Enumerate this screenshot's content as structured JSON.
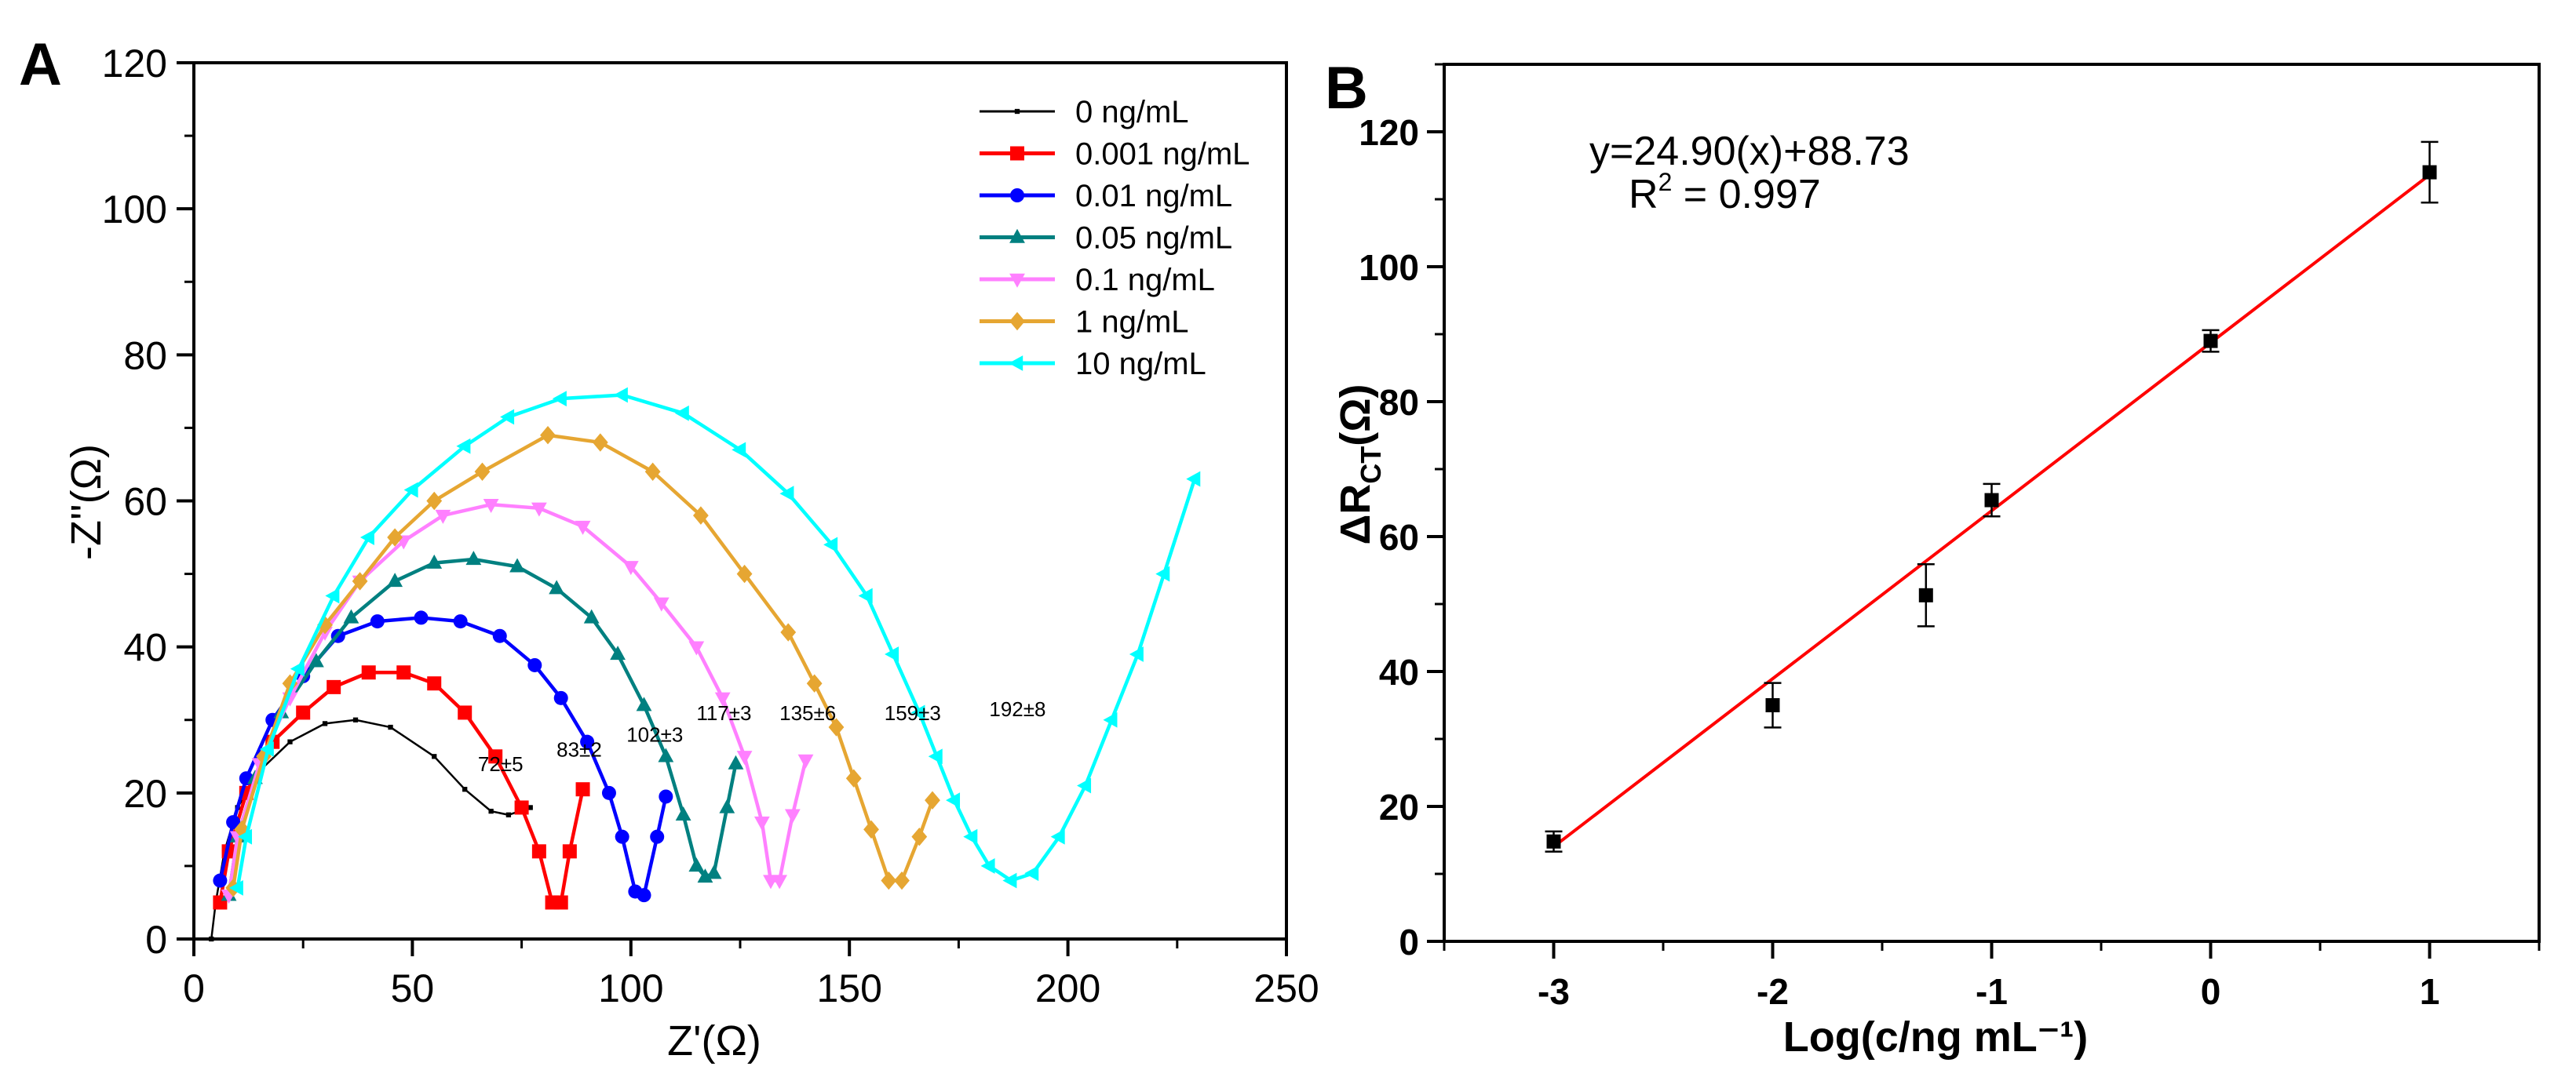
{
  "chart_data": [
    {
      "type": "line",
      "panel_label": "A",
      "title": "",
      "xlabel": "Z'(Ω)",
      "ylabel": "-Z''(Ω)",
      "xlim": [
        0,
        250
      ],
      "ylim": [
        0,
        120
      ],
      "xticks": [
        "0",
        "50",
        "100",
        "150",
        "200",
        "250"
      ],
      "yticks": [
        "0",
        "20",
        "40",
        "60",
        "80",
        "100",
        "120"
      ],
      "grid": false,
      "legend_position": "top-right",
      "series": [
        {
          "name": "0 ng/mL",
          "color": "#000000",
          "marker": "square-small",
          "x": [
            4,
            5,
            7,
            10,
            15,
            22,
            30,
            37,
            45,
            55,
            62,
            68,
            72,
            77
          ],
          "y": [
            0,
            5,
            12,
            18,
            23,
            27,
            29.5,
            30,
            29,
            25,
            20.5,
            17.5,
            17,
            18
          ]
        },
        {
          "name": "0.001 ng/mL",
          "color": "#ff0000",
          "marker": "square",
          "x": [
            6,
            8,
            12,
            18,
            25,
            32,
            40,
            48,
            55,
            62,
            69,
            75,
            79,
            82,
            84,
            86,
            89
          ],
          "y": [
            5,
            12,
            20,
            27,
            31,
            34.5,
            36.5,
            36.5,
            35,
            31,
            25,
            18,
            12,
            5,
            5,
            12,
            20.5
          ]
        },
        {
          "name": "0.01 ng/mL",
          "color": "#0000ff",
          "marker": "circle",
          "x": [
            6,
            9,
            12,
            18,
            25,
            33,
            42,
            52,
            61,
            70,
            78,
            84,
            90,
            95,
            98,
            101,
            103,
            106,
            108
          ],
          "y": [
            8,
            16,
            22,
            30,
            36,
            41.5,
            43.5,
            44,
            43.5,
            41.5,
            37.5,
            33,
            27,
            20,
            14,
            6.5,
            6,
            14,
            19.5
          ]
        },
        {
          "name": "0.05 ng/mL",
          "color": "#008080",
          "marker": "triangle-up",
          "x": [
            8,
            10,
            14,
            20,
            28,
            36,
            46,
            55,
            64,
            74,
            83,
            91,
            97,
            103,
            108,
            112,
            115,
            117,
            119,
            122,
            124
          ],
          "y": [
            6,
            14,
            22,
            31,
            38,
            44,
            49,
            51.5,
            52,
            51,
            48,
            44,
            39,
            32,
            25,
            17,
            10,
            8.5,
            9,
            18,
            24
          ]
        },
        {
          "name": "0.1 ng/mL",
          "color": "#ff80ff",
          "marker": "triangle-down",
          "x": [
            8,
            10,
            15,
            22,
            30,
            38,
            48,
            57,
            68,
            79,
            89,
            100,
            107,
            115,
            121,
            126,
            130,
            132,
            134,
            137,
            140
          ],
          "y": [
            6,
            14,
            24,
            33,
            42,
            49,
            54.5,
            58,
            59.5,
            59,
            56.5,
            51,
            46,
            40,
            33,
            25,
            16,
            8,
            8,
            17,
            24.5
          ]
        },
        {
          "name": "1 ng/mL",
          "color": "#e6a632",
          "marker": "diamond",
          "x": [
            9,
            11,
            16,
            22,
            30,
            38,
            46,
            55,
            66,
            81,
            93,
            105,
            116,
            126,
            136,
            142,
            147,
            151,
            155,
            159,
            162,
            166,
            169
          ],
          "y": [
            7,
            15,
            25,
            35,
            43,
            49,
            55,
            60,
            64,
            69,
            68,
            64,
            58,
            50,
            42,
            35,
            29,
            22,
            15,
            8,
            8,
            14,
            19
          ]
        },
        {
          "name": "10 ng/mL",
          "color": "#00ffff",
          "marker": "triangle-left",
          "x": [
            10,
            12,
            17,
            24,
            32,
            40,
            50,
            62,
            72,
            84,
            98,
            112,
            125,
            136,
            146,
            154,
            160,
            166,
            170,
            174,
            178,
            182,
            187,
            192,
            198,
            204,
            210,
            216,
            222,
            229
          ],
          "y": [
            7,
            14,
            26,
            37,
            47,
            55,
            61.5,
            67.5,
            71.5,
            74,
            74.5,
            72,
            67,
            61,
            54,
            47,
            39,
            31,
            25,
            19,
            14,
            10,
            8,
            9,
            14,
            21,
            30,
            39,
            50,
            63
          ]
        }
      ],
      "annotations": [
        {
          "text": "72±5",
          "x": 65,
          "y": 23
        },
        {
          "text": "83±2",
          "x": 83,
          "y": 25
        },
        {
          "text": "102±3",
          "x": 99,
          "y": 27
        },
        {
          "text": "117±3",
          "x": 115,
          "y": 30
        },
        {
          "text": "135±6",
          "x": 134,
          "y": 30
        },
        {
          "text": "159±3",
          "x": 158,
          "y": 30
        },
        {
          "text": "192±8",
          "x": 182,
          "y": 30.5
        }
      ]
    },
    {
      "type": "scatter",
      "panel_label": "B",
      "title": "",
      "xlabel": "Log(c/ng mL⁻¹)",
      "ylabel_main": "ΔR",
      "ylabel_sub": "CT",
      "ylabel_tail": "(Ω)",
      "xlim": [
        -3.5,
        1.5
      ],
      "ylim": [
        0,
        130
      ],
      "xticks": [
        "-3",
        "-2",
        "-1",
        "0",
        "1"
      ],
      "yticks": [
        "0",
        "20",
        "40",
        "60",
        "80",
        "100",
        "120"
      ],
      "grid": false,
      "points": {
        "x": [
          -3,
          -2,
          -1.3,
          -1,
          0,
          1
        ],
        "y": [
          14.8,
          35,
          51.3,
          65.4,
          89,
          114
        ],
        "error": [
          1.5,
          3.3,
          4.6,
          2.4,
          1.6,
          4.5
        ],
        "color": "#000000"
      },
      "fit": {
        "slope": 24.9,
        "intercept": 88.73,
        "x_range": [
          -3,
          1
        ],
        "color": "#ff0000"
      },
      "equation": "y=24.90(x)+88.73",
      "r2_label": "R",
      "r2_sup": "2",
      "r2_value": " = 0.997"
    }
  ]
}
